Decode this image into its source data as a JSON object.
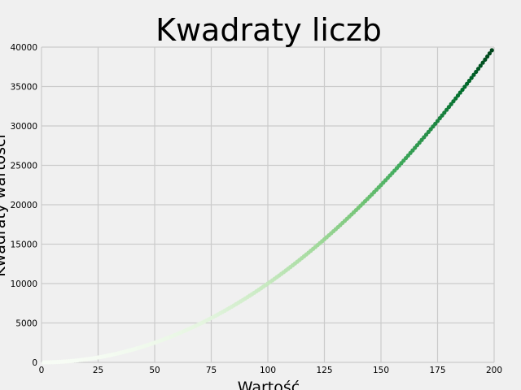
{
  "chart_data": {
    "type": "scatter",
    "title": "Kwadraty liczb",
    "xlabel": "Wartość",
    "ylabel": "Kwadraty wartości",
    "xlim": [
      0,
      200
    ],
    "ylim": [
      0,
      40000
    ],
    "xticks": [
      0,
      25,
      50,
      75,
      100,
      125,
      150,
      175,
      200
    ],
    "yticks": [
      0,
      5000,
      10000,
      15000,
      20000,
      25000,
      30000,
      35000,
      40000
    ],
    "x_start": 1,
    "x_end": 199,
    "formula": "y = x^2",
    "colormap": "Greens",
    "color_low": "#f7fcf5",
    "color_high": "#00441b",
    "grid": true,
    "background": "#f0f0f0",
    "grid_color": "#cbcbcb"
  }
}
